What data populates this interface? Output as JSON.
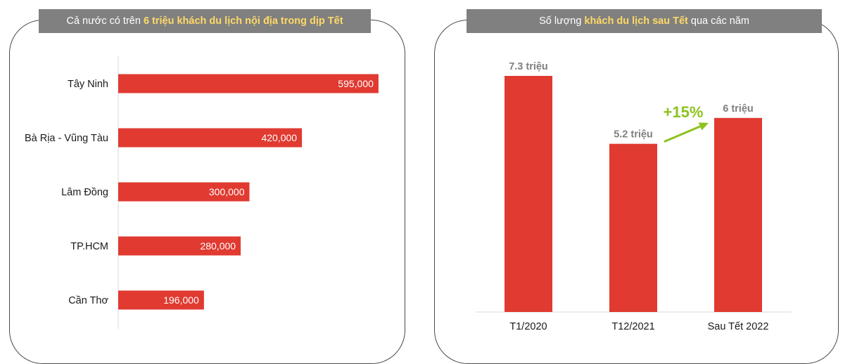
{
  "left_panel": {
    "banner": {
      "prefix": "Cả nước có trên ",
      "highlight": "6 triệu khách du lịch nội địa trong dịp Tết",
      "suffix": ""
    }
  },
  "right_panel": {
    "banner": {
      "prefix": "Số lượng ",
      "highlight": "khách du lịch sau Tết",
      "suffix": " qua các năm"
    },
    "growth_label": "+15%"
  },
  "colors": {
    "bar": "#e03a31",
    "banner_bg": "#808080",
    "banner_highlight": "#ffd966",
    "growth": "#8cc21f",
    "value_label_gray": "#7f7f7f"
  },
  "chart_data": [
    {
      "type": "bar",
      "orientation": "horizontal",
      "title": "",
      "categories": [
        "Tây Ninh",
        "Bà Rịa - Vũng Tàu",
        "Lâm Đồng",
        "TP.HCM",
        "Cần Thơ"
      ],
      "values": [
        595000,
        420000,
        300000,
        280000,
        196000
      ],
      "value_labels": [
        "595,000",
        "420,000",
        "300,000",
        "280,000",
        "196,000"
      ],
      "xlim": [
        0,
        600000
      ],
      "grid": false,
      "legend": "none"
    },
    {
      "type": "bar",
      "orientation": "vertical",
      "title": "",
      "categories": [
        "T1/2020",
        "T12/2021",
        "Sau Tết 2022"
      ],
      "values": [
        7.3,
        5.2,
        6
      ],
      "value_labels": [
        "7.3 triệu",
        "5.2 triệu",
        "6 triệu"
      ],
      "ylim": [
        0,
        7.3
      ],
      "grid": false,
      "legend": "none",
      "annotation": "+15%"
    }
  ]
}
